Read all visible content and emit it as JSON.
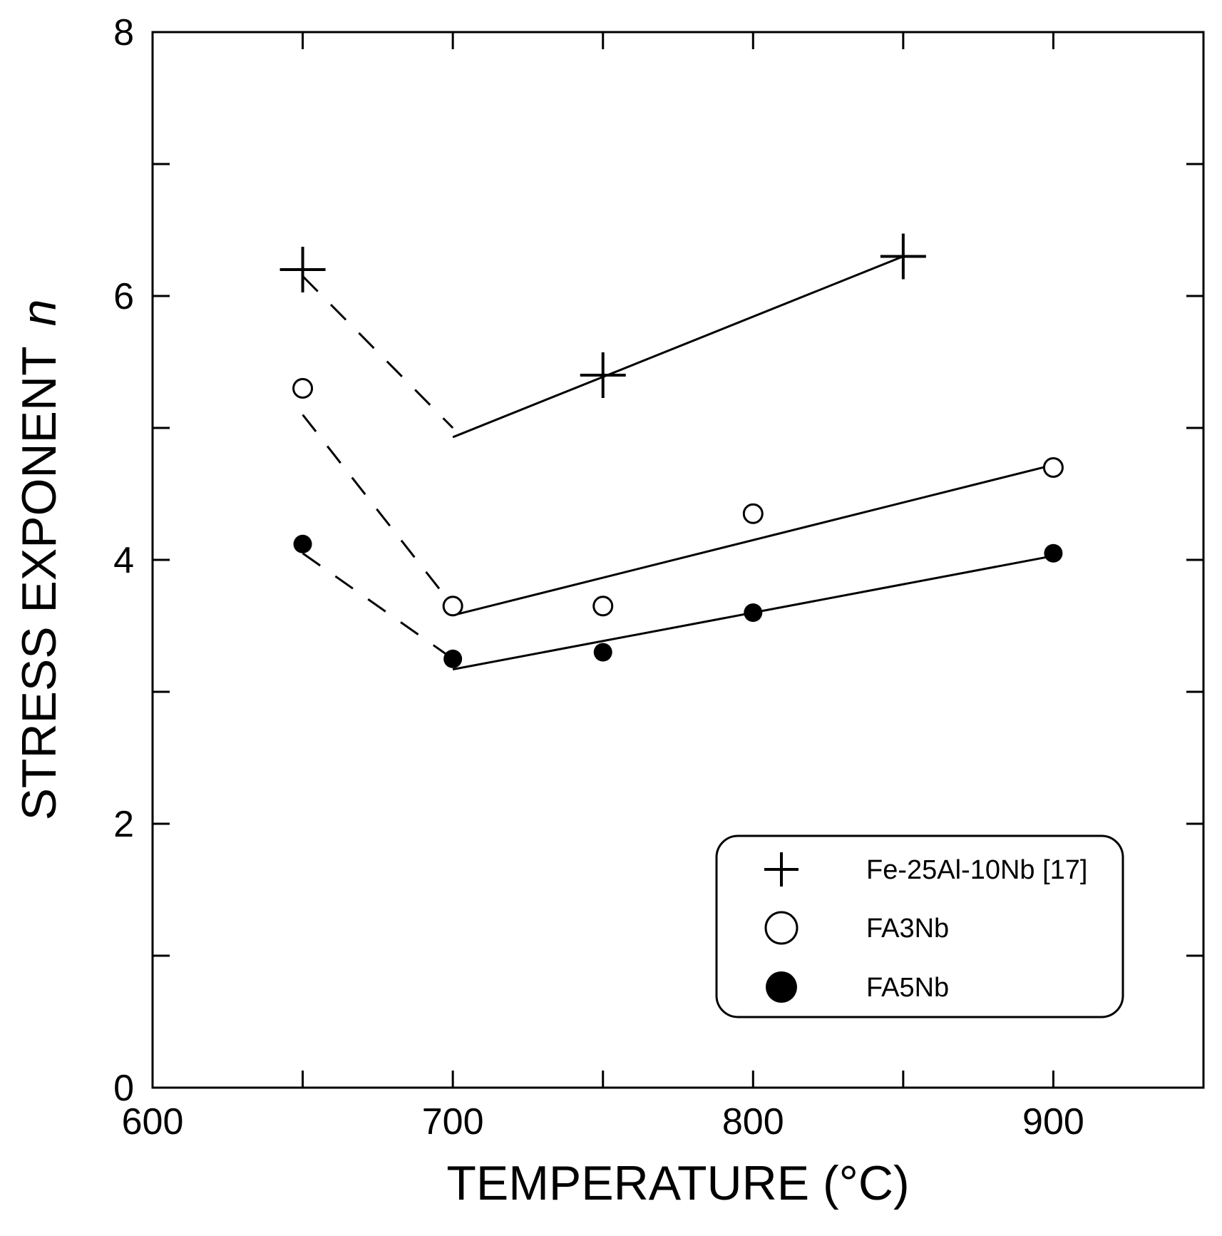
{
  "chart_data": {
    "type": "scatter",
    "title": "",
    "xlabel": "TEMPERATURE (°C)",
    "ylabel_main": "STRESS EXPONENT",
    "ylabel_italic": "n",
    "xlim": [
      600,
      950
    ],
    "ylim": [
      0,
      8
    ],
    "x_ticks": [
      600,
      700,
      800,
      900
    ],
    "x_minor_ticks": [
      650,
      750,
      850
    ],
    "y_ticks": [
      0,
      2,
      4,
      6,
      8
    ],
    "y_minor_ticks": [
      1,
      3,
      5,
      7
    ],
    "legend_position": "bottom-right",
    "series": [
      {
        "name": "Fe-25Al-10Nb [17]",
        "marker": "plus",
        "x": [
          650,
          750,
          850
        ],
        "y": [
          6.2,
          5.4,
          6.3
        ],
        "dashed_line": {
          "x": [
            650,
            700
          ],
          "y": [
            6.15,
            5.0
          ]
        },
        "solid_line": {
          "x": [
            700,
            850
          ],
          "y": [
            4.93,
            6.3
          ]
        }
      },
      {
        "name": "FA3Nb",
        "marker": "open-circle",
        "x": [
          650,
          700,
          750,
          800,
          900
        ],
        "y": [
          5.3,
          3.65,
          3.65,
          4.35,
          4.7
        ],
        "dashed_line": {
          "x": [
            650,
            700
          ],
          "y": [
            5.1,
            3.65
          ]
        },
        "solid_line": {
          "x": [
            700,
            900
          ],
          "y": [
            3.58,
            4.72
          ]
        }
      },
      {
        "name": "FA5Nb",
        "marker": "filled-circle",
        "x": [
          650,
          700,
          750,
          800,
          900
        ],
        "y": [
          4.12,
          3.25,
          3.3,
          3.6,
          4.05
        ],
        "dashed_line": {
          "x": [
            650,
            700
          ],
          "y": [
            4.05,
            3.25
          ]
        },
        "solid_line": {
          "x": [
            700,
            900
          ],
          "y": [
            3.17,
            4.03
          ]
        }
      }
    ]
  }
}
